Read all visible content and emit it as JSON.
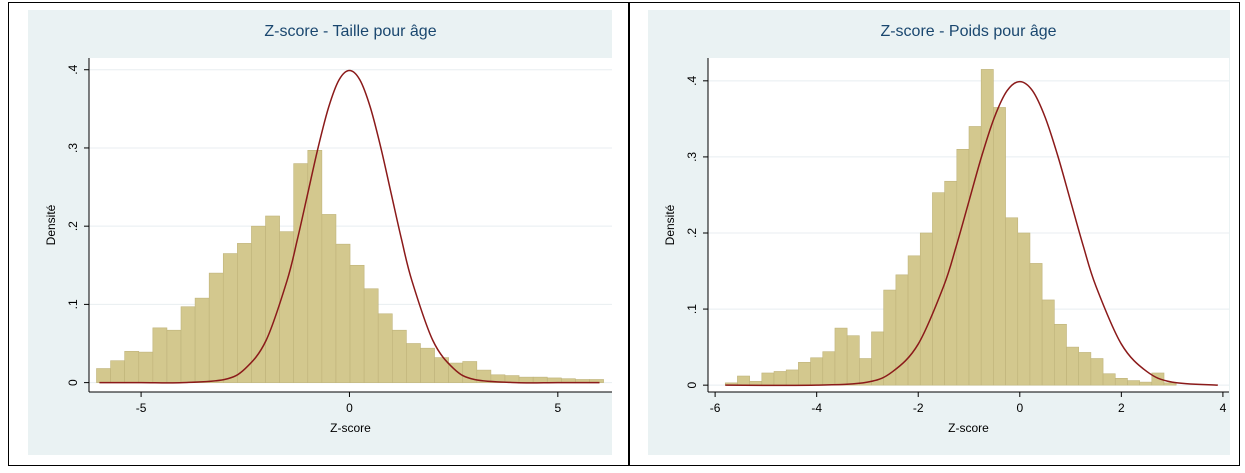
{
  "chart_data": [
    {
      "type": "histogram",
      "title": "Z-score - Taille pour âge",
      "x_label": "Z-score",
      "y_label": "Densité",
      "bins": [
        -6.07,
        -5.732,
        -5.394,
        -5.056,
        -4.718,
        -4.38,
        -4.042,
        -3.704,
        -3.366,
        -3.028,
        -2.69,
        -2.352,
        -2.014,
        -1.676,
        -1.338,
        -1.0,
        -0.662,
        -0.324,
        0.014,
        0.352,
        0.69,
        1.028,
        1.366,
        1.704,
        2.042,
        2.38,
        2.718,
        3.056,
        3.394,
        3.732,
        4.07,
        4.408,
        4.746,
        5.084,
        5.422,
        5.76,
        6.098
      ],
      "counts": [
        0.018,
        0.028,
        0.04,
        0.039,
        0.07,
        0.067,
        0.097,
        0.108,
        0.14,
        0.165,
        0.178,
        0.2,
        0.213,
        0.193,
        0.28,
        0.297,
        0.215,
        0.177,
        0.15,
        0.12,
        0.088,
        0.067,
        0.05,
        0.044,
        0.032,
        0.025,
        0.027,
        0.016,
        0.01,
        0.009,
        0.007,
        0.007,
        0.006,
        0.005,
        0.004,
        0.004
      ],
      "color": "#d3c88e",
      "curve": {
        "color": "#8b1a1a",
        "x": [
          -6,
          -5,
          -4,
          -3,
          -2.5,
          -2,
          -1.5,
          -1.25,
          -1,
          -0.75,
          -0.5,
          -0.25,
          0,
          0.25,
          0.5,
          0.75,
          1,
          1.25,
          1.5,
          2,
          2.5,
          3,
          4,
          5,
          6
        ],
        "values": [
          0,
          0,
          0,
          0.004,
          0.018,
          0.054,
          0.13,
          0.183,
          0.242,
          0.301,
          0.352,
          0.387,
          0.399,
          0.387,
          0.352,
          0.301,
          0.242,
          0.183,
          0.13,
          0.054,
          0.018,
          0.004,
          0,
          0,
          0
        ]
      },
      "xlim": [
        -6.25,
        6.3
      ],
      "xticks": [
        -5,
        0,
        5
      ],
      "ylim": [
        -0.012,
        0.415
      ],
      "yticks": [
        0,
        {
          "value": 0.1,
          "label": ".1"
        },
        {
          "value": 0.2,
          "label": ".2"
        },
        {
          "value": 0.3,
          "label": ".3"
        },
        {
          "value": 0.4,
          "label": ".4"
        }
      ],
      "grid": true
    },
    {
      "type": "histogram",
      "title": "Z-score - Poids pour âge",
      "x_label": "Z-score",
      "y_label": "Densité",
      "bins": [
        -5.8,
        -5.56,
        -5.32,
        -5.08,
        -4.84,
        -4.6,
        -4.36,
        -4.12,
        -3.88,
        -3.64,
        -3.4,
        -3.16,
        -2.92,
        -2.68,
        -2.44,
        -2.2,
        -1.96,
        -1.72,
        -1.48,
        -1.24,
        -1.0,
        -0.76,
        -0.52,
        -0.28,
        -0.04,
        0.2,
        0.44,
        0.68,
        0.92,
        1.16,
        1.4,
        1.64,
        1.88,
        2.12,
        2.36,
        2.6,
        2.84,
        3.08
      ],
      "counts": [
        0.003,
        0.012,
        0.005,
        0.016,
        0.018,
        0.02,
        0.03,
        0.036,
        0.044,
        0.075,
        0.065,
        0.035,
        0.07,
        0.125,
        0.145,
        0.17,
        0.2,
        0.253,
        0.268,
        0.31,
        0.34,
        0.415,
        0.365,
        0.22,
        0.2,
        0.16,
        0.112,
        0.08,
        0.05,
        0.043,
        0.035,
        0.015,
        0.009,
        0.006,
        0.004,
        0.016,
        0.003
      ],
      "color": "#d3c88e",
      "curve": {
        "color": "#8b1a1a",
        "x": [
          -5.8,
          -4,
          -3,
          -2.5,
          -2,
          -1.5,
          -1.25,
          -1,
          -0.75,
          -0.5,
          -0.25,
          0,
          0.25,
          0.5,
          0.75,
          1,
          1.25,
          1.5,
          2,
          2.5,
          3,
          3.9
        ],
        "values": [
          0,
          0,
          0.004,
          0.018,
          0.054,
          0.13,
          0.183,
          0.242,
          0.301,
          0.352,
          0.387,
          0.399,
          0.387,
          0.352,
          0.301,
          0.242,
          0.183,
          0.13,
          0.054,
          0.018,
          0.004,
          0
        ]
      },
      "xlim": [
        -6.14,
        4.12
      ],
      "xticks": [
        -6,
        -4,
        -2,
        0,
        2,
        4
      ],
      "ylim": [
        -0.009,
        0.43
      ],
      "yticks": [
        0,
        {
          "value": 0.1,
          "label": ".1"
        },
        {
          "value": 0.2,
          "label": ".2"
        },
        {
          "value": 0.3,
          "label": ".3"
        },
        {
          "value": 0.4,
          "label": ".4"
        }
      ],
      "grid": true
    }
  ]
}
